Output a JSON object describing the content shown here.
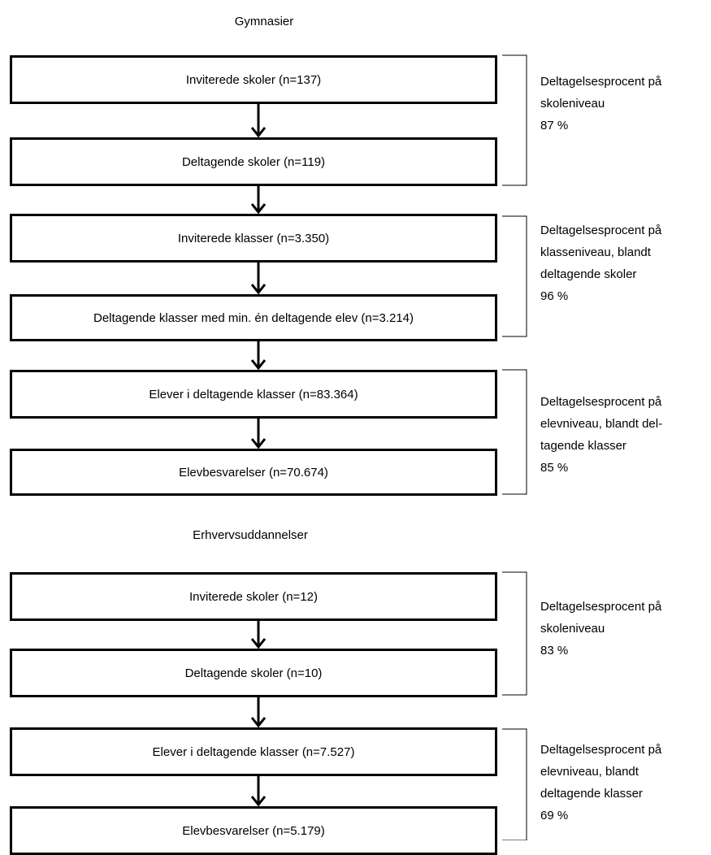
{
  "sections": [
    {
      "title": "Gymnasier",
      "boxes": [
        "Inviterede skoler (n=137)",
        "Deltagende skoler (n=119)",
        "Inviterede klasser (n=3.350)",
        "Deltagende klasser med min. én deltagende elev (n=3.214)",
        "Elever i deltagende klasser (n=83.364)",
        "Elevbesvarelser (n=70.674)"
      ],
      "brackets": [
        [
          "Deltagelsesprocent på",
          "skoleniveau",
          "87 %"
        ],
        [
          "Deltagelsesprocent på",
          "klasseniveau, blandt",
          "deltagende skoler",
          "96 %"
        ],
        [
          "Deltagelsesprocent på",
          "elevniveau, blandt del-",
          "tagende klasser",
          "85 %"
        ]
      ]
    },
    {
      "title": "Erhvervsuddannelser",
      "boxes": [
        "Inviterede skoler (n=12)",
        "Deltagende skoler (n=10)",
        "Elever i deltagende klasser (n=7.527)",
        "Elevbesvarelser (n=5.179)"
      ],
      "brackets": [
        [
          "Deltagelsesprocent på",
          "skoleniveau",
          "83 %"
        ],
        [
          "Deltagelsesprocent på",
          "elevniveau, blandt",
          "deltagende klasser",
          "69 %"
        ]
      ]
    }
  ]
}
